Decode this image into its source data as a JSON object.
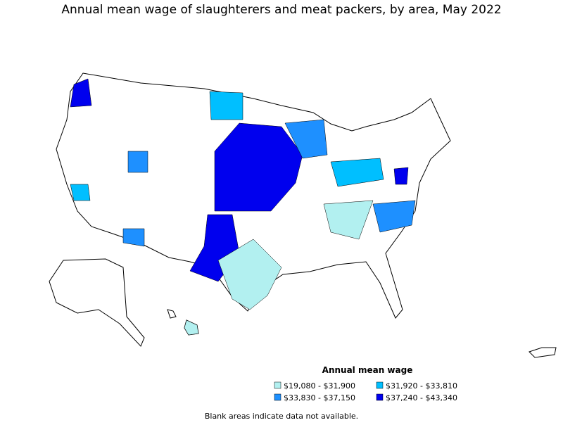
{
  "header": {
    "title": "Annual mean wage of slaughterers and meat packers, by area, May 2022"
  },
  "legend": {
    "title": "Annual mean wage",
    "items": [
      {
        "label": "$19,080 - $31,900",
        "color": "#b2f0f0"
      },
      {
        "label": "$31,920 - $33,810",
        "color": "#00bfff"
      },
      {
        "label": "$33,830 - $37,150",
        "color": "#1e90ff"
      },
      {
        "label": "$37,240 - $43,340",
        "color": "#0000ee"
      }
    ]
  },
  "note": "Blank areas indicate data not available."
}
